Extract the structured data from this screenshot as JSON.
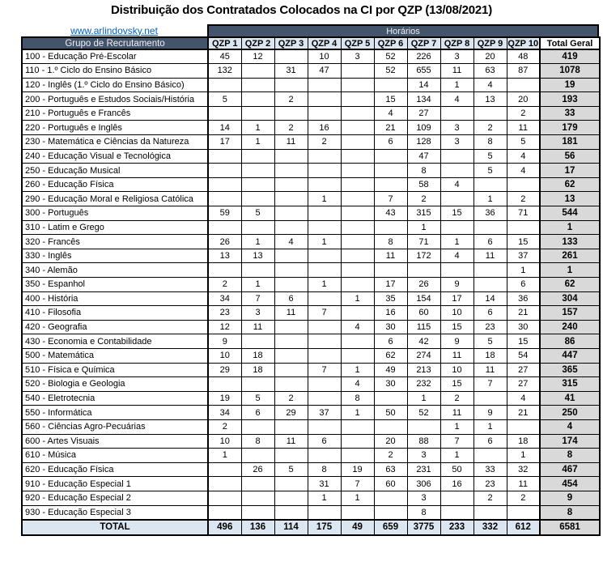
{
  "title": "Distribuição dos Contratados Colocados na CI por QZP (13/08/2021)",
  "link": {
    "text": "www.arlindovsky.net"
  },
  "colors": {
    "header_dark": "#44546A",
    "header_light_blue": "#DCE6F1",
    "total_column_gray": "#D9D9D9",
    "link_blue": "#0563C1"
  },
  "table": {
    "group_header": "Horários",
    "row_header": "Grupo de Recrutamento",
    "columns": [
      "QZP 1",
      "QZP 2",
      "QZP 3",
      "QZP 4",
      "QZP 5",
      "QZP 6",
      "QZP 7",
      "QZP 8",
      "QZP 9",
      "QZP 10",
      "Total Geral"
    ],
    "rows": [
      {
        "label": "100 - Educação Pré-Escolar",
        "values": [
          "45",
          "12",
          "",
          "10",
          "3",
          "52",
          "226",
          "3",
          "20",
          "48"
        ],
        "total": "419"
      },
      {
        "label": "110 - 1.º Ciclo do Ensino Básico",
        "values": [
          "132",
          "",
          "31",
          "47",
          "",
          "52",
          "655",
          "11",
          "63",
          "87"
        ],
        "total": "1078"
      },
      {
        "label": "120 - Inglês (1.º Ciclo do Ensino Básico)",
        "values": [
          "",
          "",
          "",
          "",
          "",
          "",
          "14",
          "1",
          "4",
          ""
        ],
        "total": "19"
      },
      {
        "label": "200 - Português e Estudos Sociais/História",
        "values": [
          "5",
          "",
          "2",
          "",
          "",
          "15",
          "134",
          "4",
          "13",
          "20"
        ],
        "total": "193"
      },
      {
        "label": "210 - Português e Francês",
        "values": [
          "",
          "",
          "",
          "",
          "",
          "4",
          "27",
          "",
          "",
          "2"
        ],
        "total": "33"
      },
      {
        "label": "220 - Português e Inglês",
        "values": [
          "14",
          "1",
          "2",
          "16",
          "",
          "21",
          "109",
          "3",
          "2",
          "11"
        ],
        "total": "179"
      },
      {
        "label": "230 - Matemática e Ciências da Natureza",
        "values": [
          "17",
          "1",
          "11",
          "2",
          "",
          "6",
          "128",
          "3",
          "8",
          "5"
        ],
        "total": "181"
      },
      {
        "label": "240 - Educação Visual e Tecnológica",
        "values": [
          "",
          "",
          "",
          "",
          "",
          "",
          "47",
          "",
          "5",
          "4"
        ],
        "total": "56"
      },
      {
        "label": "250 - Educação Musical",
        "values": [
          "",
          "",
          "",
          "",
          "",
          "",
          "8",
          "",
          "5",
          "4"
        ],
        "total": "17"
      },
      {
        "label": "260 - Educação Física",
        "values": [
          "",
          "",
          "",
          "",
          "",
          "",
          "58",
          "4",
          "",
          ""
        ],
        "total": "62"
      },
      {
        "label": "290 - Educação Moral e Religiosa Católica",
        "values": [
          "",
          "",
          "",
          "1",
          "",
          "7",
          "2",
          "",
          "1",
          "2"
        ],
        "total": "13"
      },
      {
        "label": "300 - Português",
        "values": [
          "59",
          "5",
          "",
          "",
          "",
          "43",
          "315",
          "15",
          "36",
          "71"
        ],
        "total": "544"
      },
      {
        "label": "310 - Latim e Grego",
        "values": [
          "",
          "",
          "",
          "",
          "",
          "",
          "1",
          "",
          "",
          ""
        ],
        "total": "1"
      },
      {
        "label": "320 - Francês",
        "values": [
          "26",
          "1",
          "4",
          "1",
          "",
          "8",
          "71",
          "1",
          "6",
          "15"
        ],
        "total": "133"
      },
      {
        "label": "330 - Inglês",
        "values": [
          "13",
          "13",
          "",
          "",
          "",
          "11",
          "172",
          "4",
          "11",
          "37"
        ],
        "total": "261"
      },
      {
        "label": "340 - Alemão",
        "values": [
          "",
          "",
          "",
          "",
          "",
          "",
          "",
          "",
          "",
          "1"
        ],
        "total": "1"
      },
      {
        "label": "350 - Espanhol",
        "values": [
          "2",
          "1",
          "",
          "1",
          "",
          "17",
          "26",
          "9",
          "",
          "6"
        ],
        "total": "62"
      },
      {
        "label": "400 - História",
        "values": [
          "34",
          "7",
          "6",
          "",
          "1",
          "35",
          "154",
          "17",
          "14",
          "36"
        ],
        "total": "304"
      },
      {
        "label": "410 - Filosofia",
        "values": [
          "23",
          "3",
          "11",
          "7",
          "",
          "16",
          "60",
          "10",
          "6",
          "21"
        ],
        "total": "157"
      },
      {
        "label": "420 - Geografia",
        "values": [
          "12",
          "11",
          "",
          "",
          "4",
          "30",
          "115",
          "15",
          "23",
          "30"
        ],
        "total": "240"
      },
      {
        "label": "430 - Economia e Contabilidade",
        "values": [
          "9",
          "",
          "",
          "",
          "",
          "6",
          "42",
          "9",
          "5",
          "15"
        ],
        "total": "86"
      },
      {
        "label": "500 - Matemática",
        "values": [
          "10",
          "18",
          "",
          "",
          "",
          "62",
          "274",
          "11",
          "18",
          "54"
        ],
        "total": "447"
      },
      {
        "label": "510 - Física e Química",
        "values": [
          "29",
          "18",
          "",
          "7",
          "1",
          "49",
          "213",
          "10",
          "11",
          "27"
        ],
        "total": "365"
      },
      {
        "label": "520 - Biologia e Geologia",
        "values": [
          "",
          "",
          "",
          "",
          "4",
          "30",
          "232",
          "15",
          "7",
          "27"
        ],
        "total": "315"
      },
      {
        "label": "540 - Eletrotecnia",
        "values": [
          "19",
          "5",
          "2",
          "",
          "8",
          "",
          "1",
          "2",
          "",
          "4"
        ],
        "total": "41"
      },
      {
        "label": "550 - Informática",
        "values": [
          "34",
          "6",
          "29",
          "37",
          "1",
          "50",
          "52",
          "11",
          "9",
          "21"
        ],
        "total": "250"
      },
      {
        "label": "560 - Ciências Agro-Pecuárias",
        "values": [
          "2",
          "",
          "",
          "",
          "",
          "",
          "",
          "1",
          "1",
          ""
        ],
        "total": "4"
      },
      {
        "label": "600 - Artes Visuais",
        "values": [
          "10",
          "8",
          "11",
          "6",
          "",
          "20",
          "88",
          "7",
          "6",
          "18"
        ],
        "total": "174"
      },
      {
        "label": "610 - Música",
        "values": [
          "1",
          "",
          "",
          "",
          "",
          "2",
          "3",
          "1",
          "",
          "1"
        ],
        "total": "8"
      },
      {
        "label": "620 - Educação Física",
        "values": [
          "",
          "26",
          "5",
          "8",
          "19",
          "63",
          "231",
          "50",
          "33",
          "32"
        ],
        "total": "467"
      },
      {
        "label": "910 - Educação Especial 1",
        "values": [
          "",
          "",
          "",
          "31",
          "7",
          "60",
          "306",
          "16",
          "23",
          "11"
        ],
        "total": "454"
      },
      {
        "label": "920 - Educação Especial 2",
        "values": [
          "",
          "",
          "",
          "1",
          "1",
          "",
          "3",
          "",
          "2",
          "2"
        ],
        "total": "9"
      },
      {
        "label": "930 - Educação Especial 3",
        "values": [
          "",
          "",
          "",
          "",
          "",
          "",
          "8",
          "",
          "",
          ""
        ],
        "total": "8"
      }
    ],
    "total_row": {
      "label": "TOTAL",
      "values": [
        "496",
        "136",
        "114",
        "175",
        "49",
        "659",
        "3775",
        "233",
        "332",
        "612"
      ],
      "total": "6581"
    }
  }
}
